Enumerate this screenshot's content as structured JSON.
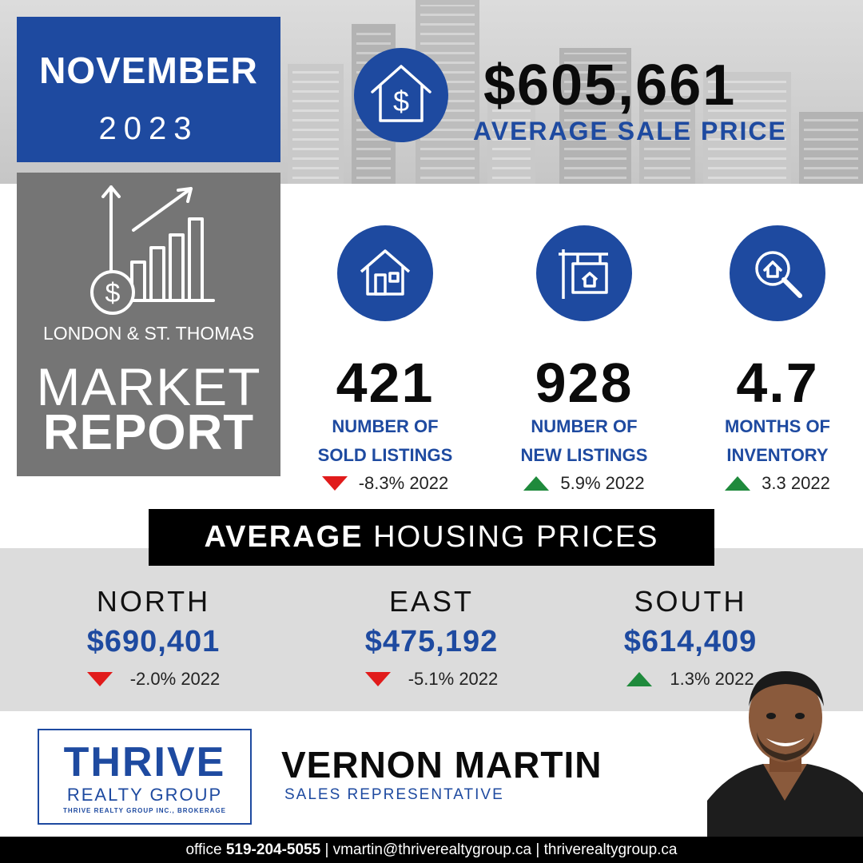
{
  "header": {
    "month": "NOVEMBER",
    "year": "2023",
    "average_sale_price": "$605,661",
    "average_sale_label": "AVERAGE SALE PRICE"
  },
  "report": {
    "region": "LONDON & ST. THOMAS",
    "title_line1": "MARKET",
    "title_line2": "REPORT"
  },
  "stats": [
    {
      "value": "421",
      "label_line1": "NUMBER OF",
      "label_line2": "SOLD LISTINGS",
      "change": "-8.3% 2022",
      "direction": "down",
      "icon": "house-icon"
    },
    {
      "value": "928",
      "label_line1": "NUMBER OF",
      "label_line2": "NEW LISTINGS",
      "change": "5.9% 2022",
      "direction": "up",
      "icon": "for-sale-sign-icon"
    },
    {
      "value": "4.7",
      "label_line1": "MONTHS OF",
      "label_line2": "INVENTORY",
      "change": "3.3 2022",
      "direction": "up",
      "icon": "magnifier-house-icon"
    }
  ],
  "housing": {
    "title_bold": "AVERAGE",
    "title_rest": " HOUSING PRICES",
    "areas": [
      {
        "name": "NORTH",
        "price": "$690,401",
        "change": "-2.0% 2022",
        "direction": "down"
      },
      {
        "name": "EAST",
        "price": "$475,192",
        "change": "-5.1% 2022",
        "direction": "down"
      },
      {
        "name": "SOUTH",
        "price": "$614,409",
        "change": "1.3% 2022",
        "direction": "up"
      }
    ]
  },
  "brand": {
    "name": "THRIVE",
    "sub": "REALTY GROUP",
    "tiny": "THRIVE REALTY GROUP INC., BROKERAGE"
  },
  "agent": {
    "name": "VERNON MARTIN",
    "title": "SALES REPRESENTATIVE"
  },
  "footer": {
    "office_label": "office ",
    "phone": "519-204-5055",
    "sep1": " | ",
    "email": "vmartin@thriverealtygroup.ca",
    "sep2": " | ",
    "website": "thriverealtygroup.ca"
  },
  "colors": {
    "accent_blue": "#1e4aa0",
    "down_red": "#e11b1b",
    "up_green": "#1f8a3c"
  }
}
